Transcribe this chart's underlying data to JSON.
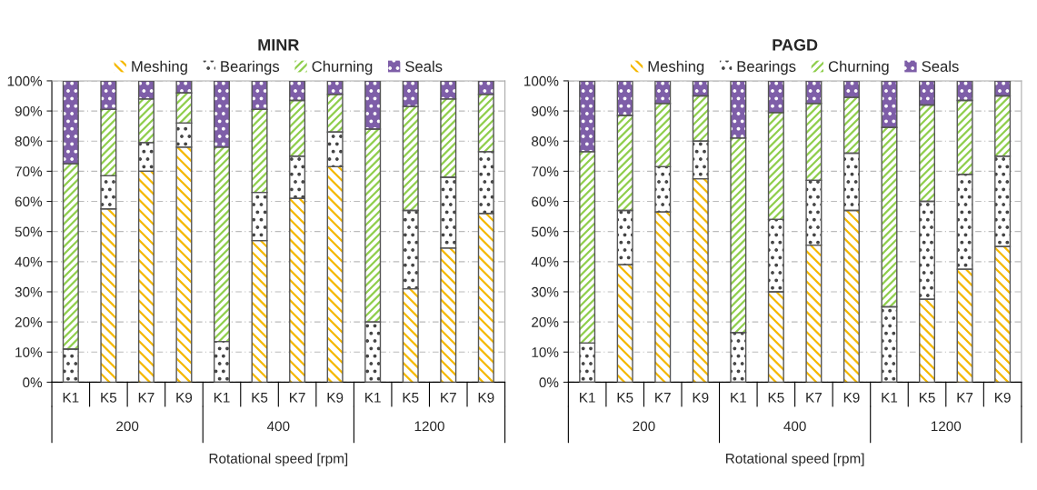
{
  "chart_data": [
    {
      "type": "bar",
      "title": "MINR",
      "xlabel": "Rotational speed [rpm]",
      "stacked": true,
      "grid": true,
      "legend": "top",
      "categories": [
        "K1",
        "K5",
        "K7",
        "K9",
        "K1",
        "K5",
        "K7",
        "K9",
        "K1",
        "K5",
        "K7",
        "K9"
      ],
      "annotations": [
        "200",
        "400",
        "1200"
      ],
      "ylim": [
        0,
        100
      ],
      "yticks": [
        {
          "value": 0,
          "label": "0%"
        },
        {
          "value": 10,
          "label": "10%"
        },
        {
          "value": 20,
          "label": "20%"
        },
        {
          "value": 30,
          "label": "30%"
        },
        {
          "value": 40,
          "label": "40%"
        },
        {
          "value": 50,
          "label": "50%"
        },
        {
          "value": 60,
          "label": "60%"
        },
        {
          "value": 70,
          "label": "70%"
        },
        {
          "value": 80,
          "label": "80%"
        },
        {
          "value": 90,
          "label": "90%"
        },
        {
          "value": 100,
          "label": "100%"
        }
      ],
      "series": [
        {
          "name": "Meshing",
          "color": "#f5b800",
          "values": [
            0,
            57.5,
            70,
            78,
            0,
            47,
            61,
            71.5,
            0,
            31,
            44.5,
            56
          ]
        },
        {
          "name": "Bearings",
          "color": "#ffffff",
          "values": [
            11,
            11,
            9.5,
            8,
            13.5,
            16,
            14,
            11.5,
            20,
            26,
            23.5,
            20.5
          ]
        },
        {
          "name": "Churning",
          "color": "#8fce4c",
          "values": [
            61.5,
            22,
            14.5,
            10,
            64.5,
            27.5,
            18.5,
            12.5,
            64,
            34.5,
            26,
            19
          ]
        },
        {
          "name": "Seals",
          "color": "#7e5ea8",
          "values": [
            27.5,
            9.5,
            6,
            4,
            22,
            9.5,
            6.5,
            4.5,
            16,
            8.5,
            6,
            4.5
          ]
        }
      ]
    },
    {
      "type": "bar",
      "title": "PAGD",
      "xlabel": "Rotational speed [rpm]",
      "stacked": true,
      "grid": true,
      "legend": "top",
      "categories": [
        "K1",
        "K5",
        "K7",
        "K9",
        "K1",
        "K5",
        "K7",
        "K9",
        "K1",
        "K5",
        "K7",
        "K9"
      ],
      "annotations": [
        "200",
        "400",
        "1200"
      ],
      "ylim": [
        0,
        100
      ],
      "yticks": [
        {
          "value": 0,
          "label": "0%"
        },
        {
          "value": 10,
          "label": "10%"
        },
        {
          "value": 20,
          "label": "20%"
        },
        {
          "value": 30,
          "label": "30%"
        },
        {
          "value": 40,
          "label": "40%"
        },
        {
          "value": 50,
          "label": "50%"
        },
        {
          "value": 60,
          "label": "60%"
        },
        {
          "value": 70,
          "label": "70%"
        },
        {
          "value": 80,
          "label": "80%"
        },
        {
          "value": 90,
          "label": "90%"
        },
        {
          "value": 100,
          "label": "100%"
        }
      ],
      "series": [
        {
          "name": "Meshing",
          "color": "#f5b800",
          "values": [
            0,
            39,
            56.5,
            67.5,
            0,
            30,
            45.5,
            57,
            0,
            27.5,
            37.5,
            45
          ]
        },
        {
          "name": "Bearings",
          "color": "#ffffff",
          "values": [
            13,
            18,
            15,
            12.5,
            16.5,
            24,
            21.5,
            19,
            25,
            32.5,
            31.5,
            30
          ]
        },
        {
          "name": "Churning",
          "color": "#8fce4c",
          "values": [
            63.5,
            31.5,
            21,
            15,
            64.5,
            35.5,
            25.5,
            18.5,
            59.5,
            32,
            24.5,
            20
          ]
        },
        {
          "name": "Seals",
          "color": "#7e5ea8",
          "values": [
            23.5,
            11.5,
            7.5,
            5,
            19,
            10.5,
            7.5,
            5.5,
            15.5,
            8,
            6.5,
            5
          ]
        }
      ]
    }
  ]
}
